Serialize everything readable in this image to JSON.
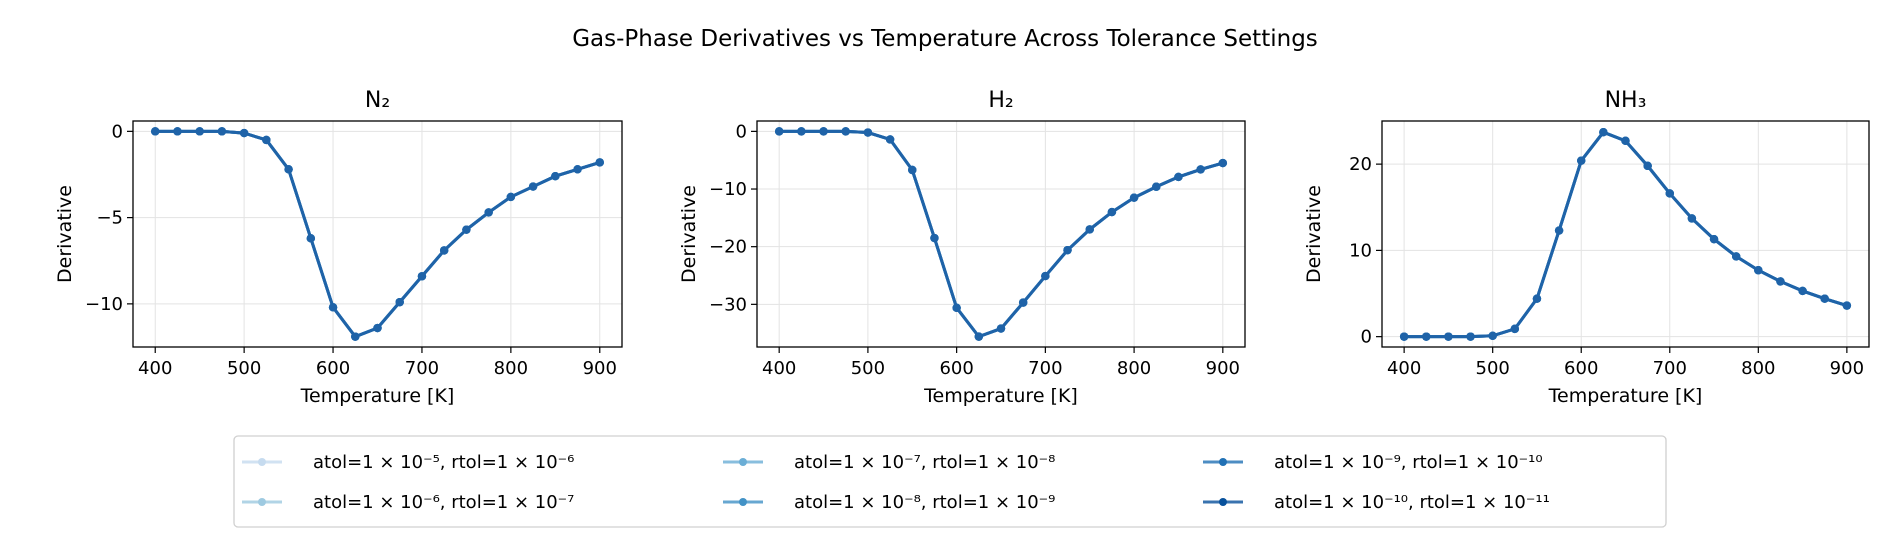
{
  "chart_data": {
    "title": "Gas-Phase Derivatives vs Temperature Across Tolerance Settings",
    "legend": {
      "placement": "bottom-center",
      "columns": 3,
      "entries": [
        {
          "label": "atol=1 × 10⁻⁵, rtol=1 × 10⁻⁶",
          "color": "#c6dbef"
        },
        {
          "label": "atol=1 × 10⁻⁶, rtol=1 × 10⁻⁷",
          "color": "#9ecae1"
        },
        {
          "label": "atol=1 × 10⁻⁷, rtol=1 × 10⁻⁸",
          "color": "#6baed6"
        },
        {
          "label": "atol=1 × 10⁻⁸, rtol=1 × 10⁻⁹",
          "color": "#4292c6"
        },
        {
          "label": "atol=1 × 10⁻⁹, rtol=1 × 10⁻¹⁰",
          "color": "#2171b5"
        },
        {
          "label": "atol=1 × 10⁻¹⁰, rtol=1 × 10⁻¹¹",
          "color": "#08519c"
        }
      ]
    },
    "panels": [
      {
        "type": "line",
        "title": "N₂",
        "xlabel": "Temperature [K]",
        "ylabel": "Derivative",
        "xlim": [
          375,
          925
        ],
        "ylim": [
          -12.5,
          0.6
        ],
        "xticks": [
          400,
          500,
          600,
          700,
          800,
          900
        ],
        "yticks": [
          0,
          -5,
          -10
        ],
        "ytick_labels": [
          "0",
          "−5",
          "−10"
        ],
        "grid": true,
        "x": [
          400,
          425,
          450,
          475,
          500,
          525,
          550,
          575,
          600,
          625,
          650,
          675,
          700,
          725,
          750,
          775,
          800,
          825,
          850,
          875,
          900
        ],
        "y": [
          0,
          0,
          0,
          0,
          -0.1,
          -0.5,
          -2.2,
          -6.2,
          -10.2,
          -11.9,
          -11.4,
          -9.9,
          -8.4,
          -6.9,
          -5.7,
          -4.7,
          -3.8,
          -3.2,
          -2.6,
          -2.2,
          -1.8
        ]
      },
      {
        "type": "line",
        "title": "H₂",
        "xlabel": "Temperature [K]",
        "ylabel": "Derivative",
        "xlim": [
          375,
          925
        ],
        "ylim": [
          -37.4,
          1.8
        ],
        "xticks": [
          400,
          500,
          600,
          700,
          800,
          900
        ],
        "yticks": [
          0,
          -10,
          -20,
          -30
        ],
        "ytick_labels": [
          "0",
          "−10",
          "−20",
          "−30"
        ],
        "grid": true,
        "x": [
          400,
          425,
          450,
          475,
          500,
          525,
          550,
          575,
          600,
          625,
          650,
          675,
          700,
          725,
          750,
          775,
          800,
          825,
          850,
          875,
          900
        ],
        "y": [
          0,
          0,
          0,
          0,
          -0.2,
          -1.4,
          -6.7,
          -18.5,
          -30.6,
          -35.6,
          -34.2,
          -29.7,
          -25.1,
          -20.6,
          -17.0,
          -14.0,
          -11.5,
          -9.6,
          -7.9,
          -6.6,
          -5.5
        ]
      },
      {
        "type": "line",
        "title": "NH₃",
        "xlabel": "Temperature [K]",
        "ylabel": "Derivative",
        "xlim": [
          375,
          925
        ],
        "ylim": [
          -1.2,
          25.0
        ],
        "xticks": [
          400,
          500,
          600,
          700,
          800,
          900
        ],
        "yticks": [
          0,
          10,
          20
        ],
        "ytick_labels": [
          "0",
          "10",
          "20"
        ],
        "grid": true,
        "x": [
          400,
          425,
          450,
          475,
          500,
          525,
          550,
          575,
          600,
          625,
          650,
          675,
          700,
          725,
          750,
          775,
          800,
          825,
          850,
          875,
          900
        ],
        "y": [
          0,
          0,
          0,
          0,
          0.1,
          0.9,
          4.4,
          12.3,
          20.4,
          23.7,
          22.7,
          19.8,
          16.6,
          13.7,
          11.3,
          9.3,
          7.7,
          6.4,
          5.3,
          4.4,
          3.6
        ]
      }
    ]
  }
}
